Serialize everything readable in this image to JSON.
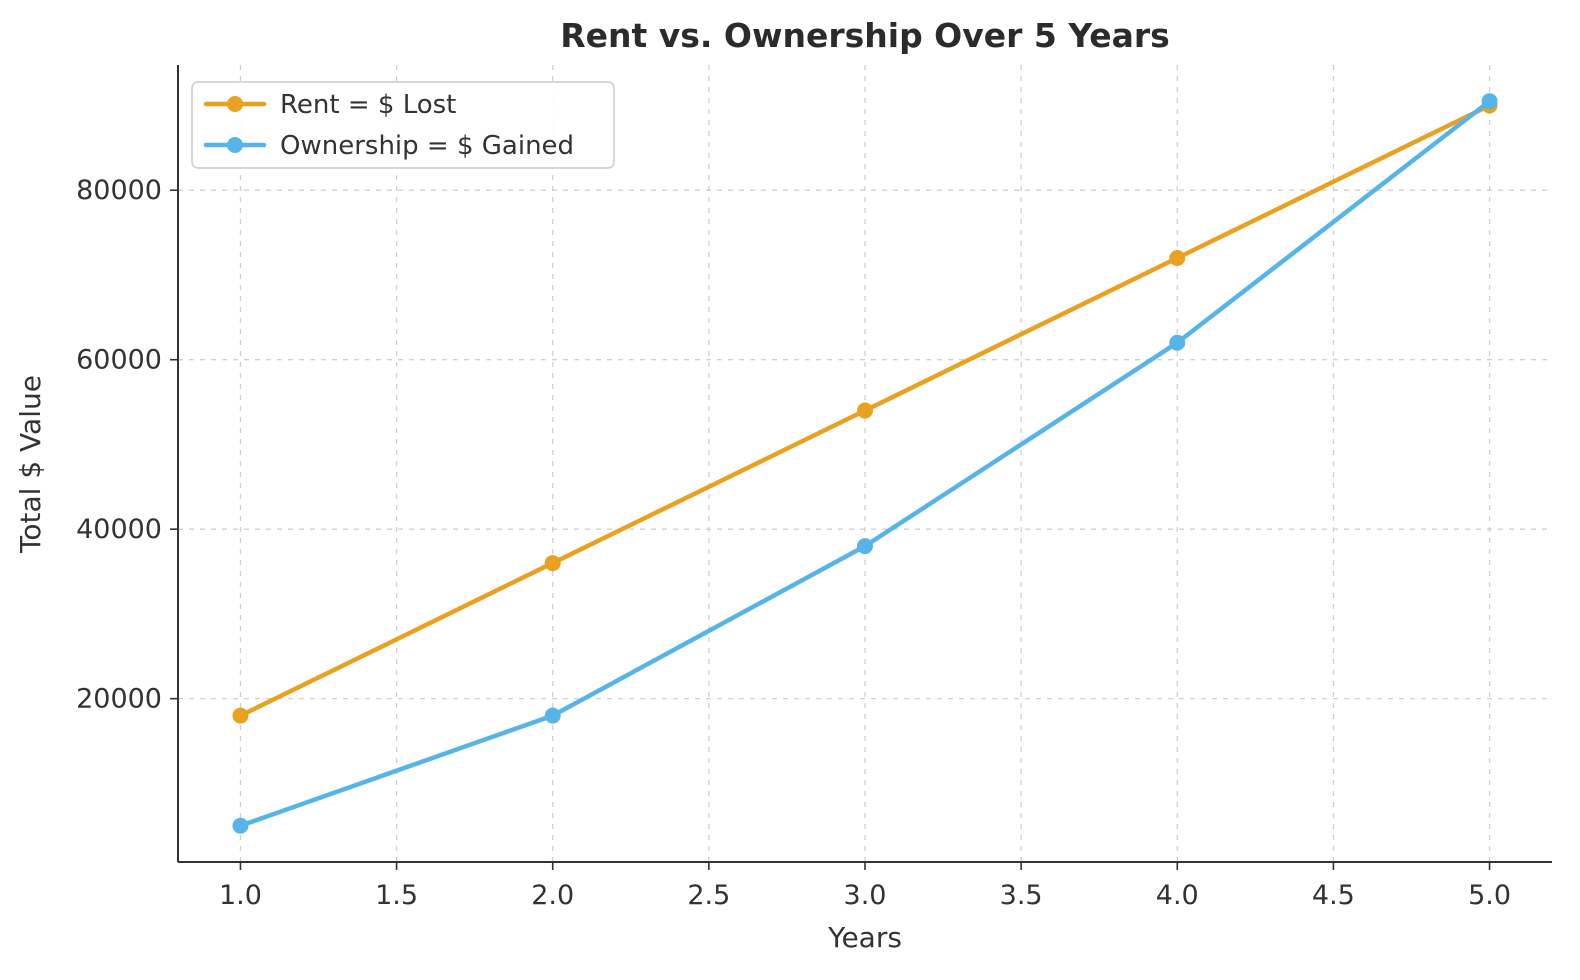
{
  "chart_data": {
    "type": "line",
    "title": "Rent vs. Ownership Over 5 Years",
    "xlabel": "Years",
    "ylabel": "Total $ Value",
    "x": [
      1,
      2,
      3,
      4,
      5
    ],
    "series": [
      {
        "name": "Rent = $ Lost",
        "color": "#E8A120",
        "values": [
          18000,
          36000,
          54000,
          72000,
          90000
        ]
      },
      {
        "name": "Ownership = $ Gained",
        "color": "#56B4E9",
        "values": [
          5000,
          18000,
          38000,
          62000,
          90500
        ]
      }
    ],
    "xlim": [
      0.8,
      5.2
    ],
    "ylim": [
      725,
      94775
    ],
    "xticks": [
      1.0,
      1.5,
      2.0,
      2.5,
      3.0,
      3.5,
      4.0,
      4.5,
      5.0
    ],
    "xtick_labels": [
      "1.0",
      "1.5",
      "2.0",
      "2.5",
      "3.0",
      "3.5",
      "4.0",
      "4.5",
      "5.0"
    ],
    "yticks": [
      20000,
      40000,
      60000,
      80000
    ],
    "ytick_labels": [
      "20000",
      "40000",
      "60000",
      "80000"
    ],
    "grid": true,
    "grid_style": "dashed",
    "legend_position": "upper left",
    "legend_entries": [
      "Rent = $ Lost",
      "Ownership = $ Gained"
    ]
  },
  "style_colors": {
    "grid": "#cccccc",
    "spine": "#333333",
    "tick": "#333333",
    "legend_border": "#cccccc",
    "legend_background": "#ffffff"
  }
}
